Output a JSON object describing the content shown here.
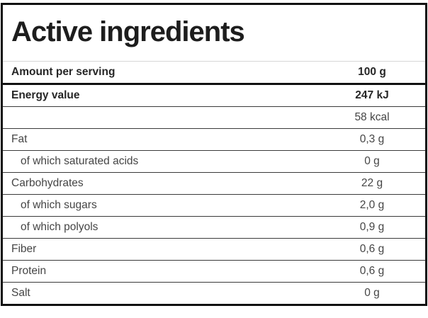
{
  "table": {
    "title": "Active ingredients",
    "rows": [
      {
        "label": "Amount per serving",
        "value": "100 g",
        "style": "header"
      },
      {
        "label": "Energy value",
        "value": "247 kJ",
        "style": "bold"
      },
      {
        "label": "",
        "value": "58 kcal",
        "style": "normal"
      },
      {
        "label": "Fat",
        "value": "0,3 g",
        "style": "normal"
      },
      {
        "label": "of which saturated acids",
        "value": "0 g",
        "style": "sub"
      },
      {
        "label": "Carbohydrates",
        "value": "22 g",
        "style": "normal"
      },
      {
        "label": "of which sugars",
        "value": "2,0 g",
        "style": "sub"
      },
      {
        "label": "of which polyols",
        "value": "0,9 g",
        "style": "sub"
      },
      {
        "label": "Fiber",
        "value": "0,6 g",
        "style": "normal"
      },
      {
        "label": "Protein",
        "value": "0,6 g",
        "style": "normal"
      },
      {
        "label": "Salt",
        "value": "0 g",
        "style": "normal"
      }
    ],
    "colors": {
      "outer_border": "#111111",
      "row_separator": "#3a3a3a",
      "header_separator": "#d6d6d6",
      "title_text": "#1d1d1d",
      "bold_text": "#262626",
      "regular_text": "#454545"
    }
  }
}
